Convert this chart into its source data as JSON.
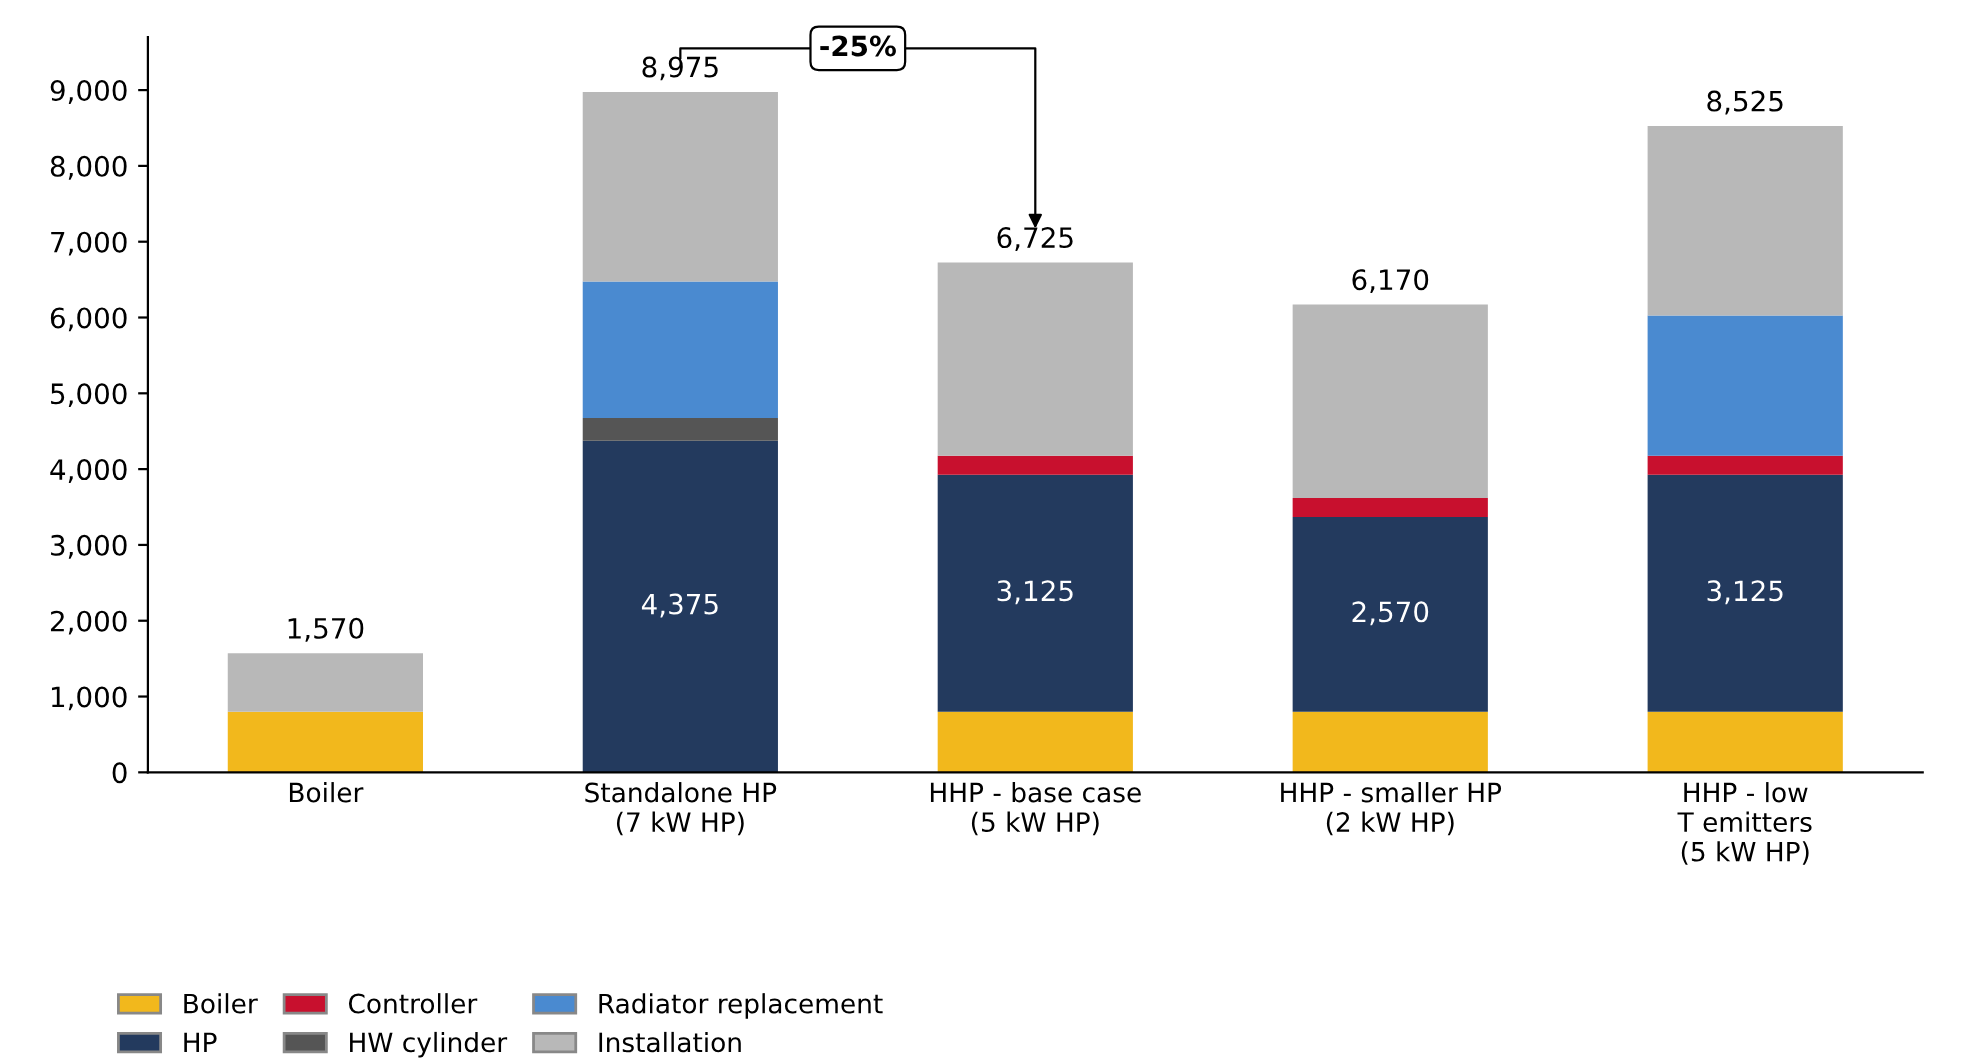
{
  "chart_data": {
    "type": "bar",
    "stacked": true,
    "categories": [
      "Boiler",
      "Standalone HP\n(7 kW HP)",
      "HHP - base case\n(5 kW HP)",
      "HHP - smaller HP\n(2 kW HP)",
      "HHP - low\nT emitters\n(5 kW HP)"
    ],
    "series": [
      {
        "name": "Boiler",
        "color": "#f2b81c",
        "values": [
          800,
          null,
          800,
          800,
          800
        ]
      },
      {
        "name": "HP",
        "color": "#233a5e",
        "values": [
          null,
          4375,
          3125,
          2570,
          3125
        ],
        "value_labels": [
          null,
          "4,375",
          "3,125",
          "2,570",
          "3,125"
        ]
      },
      {
        "name": "Controller",
        "color": "#c8102e",
        "values": [
          null,
          null,
          250,
          250,
          250
        ]
      },
      {
        "name": "HW cylinder",
        "color": "#555555",
        "values": [
          null,
          300,
          null,
          null,
          null
        ]
      },
      {
        "name": "Radiator replacement",
        "color": "#4a8ad0",
        "values": [
          null,
          1800,
          null,
          null,
          1850
        ]
      },
      {
        "name": "Installation",
        "color": "#b8b8b8",
        "values": [
          770,
          2500,
          2550,
          2550,
          2500
        ]
      }
    ],
    "totals": [
      "1,570",
      "8,975",
      "6,725",
      "6,170",
      "8,525"
    ],
    "annotations": [
      "-25%"
    ],
    "ylim": [
      0,
      9700
    ],
    "yticks": [
      {
        "value": 0,
        "label": "0"
      },
      {
        "value": 1000,
        "label": "1,000"
      },
      {
        "value": 2000,
        "label": "2,000"
      },
      {
        "value": 3000,
        "label": "3,000"
      },
      {
        "value": 4000,
        "label": "4,000"
      },
      {
        "value": 5000,
        "label": "5,000"
      },
      {
        "value": 6000,
        "label": "6,000"
      },
      {
        "value": 7000,
        "label": "7,000"
      },
      {
        "value": 8000,
        "label": "8,000"
      },
      {
        "value": 9000,
        "label": "9,000"
      }
    ],
    "grid": false,
    "legend": "bottom left"
  }
}
